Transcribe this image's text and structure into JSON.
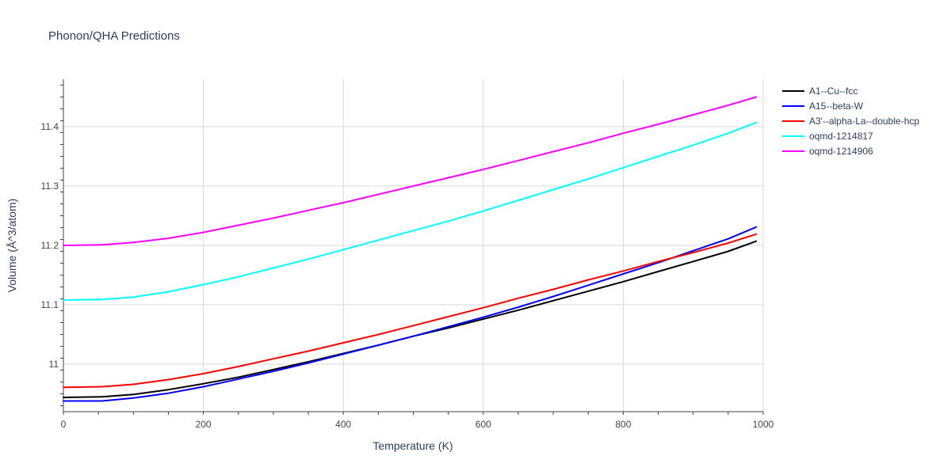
{
  "chart_data": {
    "type": "line",
    "title": "Phonon/QHA Predictions",
    "xlabel": "Temperature (K)",
    "ylabel": "Volume (Å^3/atom)",
    "xlim": [
      0,
      1000
    ],
    "ylim": [
      10.92,
      11.48
    ],
    "xticks": [
      0,
      200,
      400,
      600,
      800,
      1000
    ],
    "xtick_labels": [
      "0",
      "200",
      "400",
      "600",
      "800",
      "1000"
    ],
    "yticks": [
      11.0,
      11.1,
      11.2,
      11.3,
      11.4
    ],
    "ytick_labels": [
      "11",
      "11.1",
      "11.2",
      "11.3",
      "11.4"
    ],
    "grid": true,
    "legend_position": "top-right outside",
    "series": [
      {
        "name": "A1--Cu--fcc",
        "color": "#000000",
        "x": [
          0,
          55,
          100,
          150,
          200,
          250,
          300,
          350,
          400,
          450,
          500,
          550,
          600,
          650,
          700,
          750,
          800,
          850,
          900,
          950,
          990
        ],
        "y": [
          10.944,
          10.945,
          10.949,
          10.957,
          10.967,
          10.978,
          10.991,
          11.004,
          11.018,
          11.032,
          11.047,
          11.061,
          11.076,
          11.091,
          11.107,
          11.123,
          11.139,
          11.156,
          11.173,
          11.19,
          11.207
        ]
      },
      {
        "name": "A15--beta-W",
        "color": "#0000ff",
        "x": [
          0,
          55,
          100,
          150,
          200,
          250,
          300,
          350,
          400,
          450,
          500,
          550,
          600,
          650,
          700,
          750,
          800,
          850,
          900,
          950,
          990
        ],
        "y": [
          10.938,
          10.938,
          10.943,
          10.951,
          10.962,
          10.975,
          10.988,
          11.002,
          11.017,
          11.032,
          11.047,
          11.063,
          11.079,
          11.096,
          11.114,
          11.133,
          11.152,
          11.171,
          11.191,
          11.211,
          11.231
        ]
      },
      {
        "name": "A3'--alpha-La--double-hcp",
        "color": "#ff0000",
        "x": [
          0,
          55,
          100,
          150,
          200,
          250,
          300,
          350,
          400,
          450,
          500,
          550,
          600,
          650,
          700,
          750,
          800,
          850,
          900,
          950,
          990
        ],
        "y": [
          10.961,
          10.962,
          10.966,
          10.974,
          10.984,
          10.996,
          11.009,
          11.022,
          11.036,
          11.05,
          11.065,
          11.08,
          11.095,
          11.111,
          11.126,
          11.142,
          11.157,
          11.173,
          11.188,
          11.204,
          11.219
        ]
      },
      {
        "name": "oqmd-1214817",
        "color": "#00ffff",
        "x": [
          0,
          55,
          100,
          150,
          200,
          250,
          300,
          350,
          400,
          450,
          500,
          550,
          600,
          650,
          700,
          750,
          800,
          850,
          900,
          950,
          990
        ],
        "y": [
          11.108,
          11.109,
          11.113,
          11.122,
          11.134,
          11.147,
          11.162,
          11.177,
          11.193,
          11.209,
          11.225,
          11.241,
          11.258,
          11.276,
          11.294,
          11.312,
          11.331,
          11.35,
          11.369,
          11.389,
          11.407
        ]
      },
      {
        "name": "oqmd-1214906",
        "color": "#ff00ff",
        "x": [
          0,
          55,
          100,
          150,
          200,
          250,
          300,
          350,
          400,
          450,
          500,
          550,
          600,
          650,
          700,
          750,
          800,
          850,
          900,
          950,
          990
        ],
        "y": [
          11.2,
          11.201,
          11.205,
          11.212,
          11.222,
          11.234,
          11.246,
          11.259,
          11.272,
          11.286,
          11.3,
          11.314,
          11.328,
          11.343,
          11.358,
          11.373,
          11.389,
          11.404,
          11.42,
          11.436,
          11.45
        ]
      }
    ]
  }
}
